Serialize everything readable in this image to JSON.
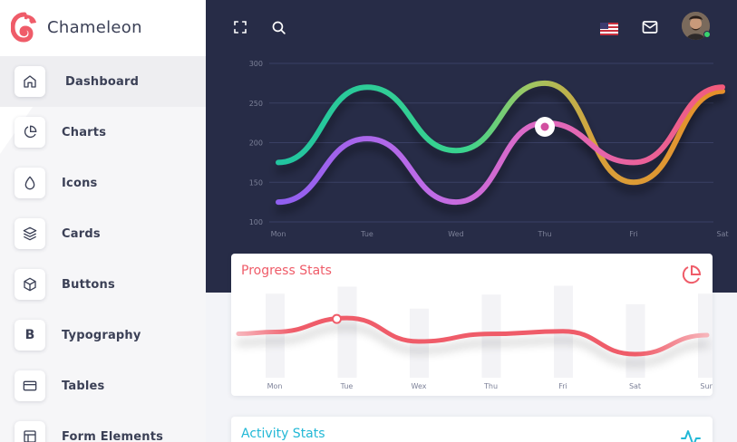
{
  "app": {
    "name": "Chameleon",
    "brand_color": "#ef5c69"
  },
  "sidebar": {
    "items": [
      {
        "label": "Dashboard",
        "icon": "home-icon",
        "active": true
      },
      {
        "label": "Charts",
        "icon": "pie-chart-icon",
        "active": false
      },
      {
        "label": "Icons",
        "icon": "droplet-icon",
        "active": false
      },
      {
        "label": "Cards",
        "icon": "layers-icon",
        "active": false
      },
      {
        "label": "Buttons",
        "icon": "box-icon",
        "active": false
      },
      {
        "label": "Typography",
        "icon": "letter-b-icon",
        "active": false,
        "glyph": "B"
      },
      {
        "label": "Tables",
        "icon": "credit-card-icon",
        "active": false
      },
      {
        "label": "Form Elements",
        "icon": "layout-icon",
        "active": false
      }
    ]
  },
  "topbar": {
    "icons": [
      "fullscreen-icon",
      "search-icon",
      "us-flag-icon",
      "mail-icon",
      "user-avatar"
    ],
    "status": "online"
  },
  "colors": {
    "dark_bg": "#272c47",
    "series_green": "#2bd49a",
    "series_purple": "#b36cf0",
    "series_pink": "#ef5c8a",
    "progress_red": "#ef5c69",
    "activity_teal": "#22b8d6",
    "online": "#39d26e"
  },
  "chart_data": [
    {
      "type": "line",
      "title": "",
      "categories": [
        "Mon",
        "Tue",
        "Wed",
        "Thu",
        "Fri",
        "Sat"
      ],
      "ylim": [
        100,
        300
      ],
      "yticks": [
        100,
        150,
        200,
        250,
        300
      ],
      "grid": true,
      "series": [
        {
          "values": [
            175,
            270,
            190,
            275,
            150,
            265
          ]
        },
        {
          "values": [
            125,
            205,
            125,
            225,
            175,
            270
          ]
        }
      ],
      "highlight": {
        "category": "Thu",
        "value": 220
      }
    },
    {
      "type": "line",
      "title": "Progress Stats",
      "categories": [
        "Mon",
        "Tue",
        "Wex",
        "Thu",
        "Fri",
        "Sat",
        "Sun"
      ],
      "values": [
        0.45,
        0.67,
        0.3,
        0.42,
        0.46,
        0.1,
        0.4
      ],
      "bars": [
        0.75,
        0.83,
        0.58,
        0.74,
        0.84,
        0.63,
        0.75
      ],
      "highlight": {
        "category": "Tue"
      }
    }
  ],
  "cards": {
    "progress": {
      "title": "Progress Stats",
      "icon": "pie-chart-icon"
    },
    "activity": {
      "title": "Activity Stats",
      "icon": "activity-icon"
    }
  }
}
